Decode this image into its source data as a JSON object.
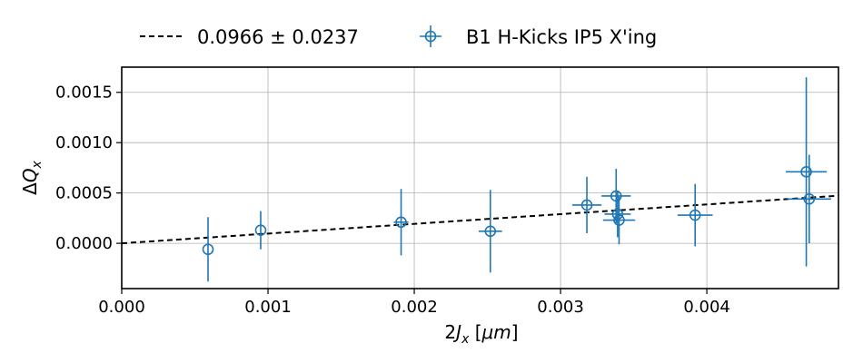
{
  "chart_data": {
    "type": "scatter",
    "title": "",
    "xlabel": "2J_x   [μm]",
    "ylabel": "ΔQ_x",
    "xlim": [
      0.0,
      0.0049
    ],
    "ylim": [
      -0.00045,
      0.00175
    ],
    "xticks": [
      0.0,
      0.001,
      0.002,
      0.003,
      0.004
    ],
    "xtick_labels": [
      "0.000",
      "0.001",
      "0.002",
      "0.003",
      "0.004"
    ],
    "yticks": [
      0.0,
      0.0005,
      0.001,
      0.0015
    ],
    "ytick_labels": [
      "0.0000",
      "0.0005",
      "0.0010",
      "0.0015"
    ],
    "grid": true,
    "legend_position": "top-outside",
    "series": [
      {
        "name": "B1 H-Kicks IP5 X'ing",
        "kind": "errorbar",
        "color": "#1f77b4",
        "points": [
          {
            "x": 0.00059,
            "y": -6e-05,
            "xerr": 0.0,
            "yerr": 0.00032
          },
          {
            "x": 0.00095,
            "y": 0.00013,
            "xerr": 0.0,
            "yerr": 0.00019
          },
          {
            "x": 0.00191,
            "y": 0.00021,
            "xerr": 5e-05,
            "yerr": 0.00033
          },
          {
            "x": 0.00252,
            "y": 0.00012,
            "xerr": 8e-05,
            "yerr": 0.00041
          },
          {
            "x": 0.00318,
            "y": 0.00038,
            "xerr": 0.0001,
            "yerr": 0.00028
          },
          {
            "x": 0.00338,
            "y": 0.00047,
            "xerr": 0.0001,
            "yerr": 0.00027
          },
          {
            "x": 0.00339,
            "y": 0.00029,
            "xerr": 9e-05,
            "yerr": 0.00023
          },
          {
            "x": 0.0034,
            "y": 0.00023,
            "xerr": 0.00011,
            "yerr": 0.00024
          },
          {
            "x": 0.00392,
            "y": 0.00028,
            "xerr": 0.00012,
            "yerr": 0.00031
          },
          {
            "x": 0.00468,
            "y": 0.00071,
            "xerr": 0.00014,
            "yerr": 0.00094
          },
          {
            "x": 0.0047,
            "y": 0.00044,
            "xerr": 0.00015,
            "yerr": 0.00044
          }
        ]
      },
      {
        "name": "0.0966 ± 0.0237",
        "kind": "fit-line",
        "color": "#000000",
        "slope": 0.0966,
        "slope_err": 0.0237,
        "x": [
          0.0,
          0.0049
        ],
        "y": [
          0.0,
          0.000473
        ]
      }
    ]
  }
}
